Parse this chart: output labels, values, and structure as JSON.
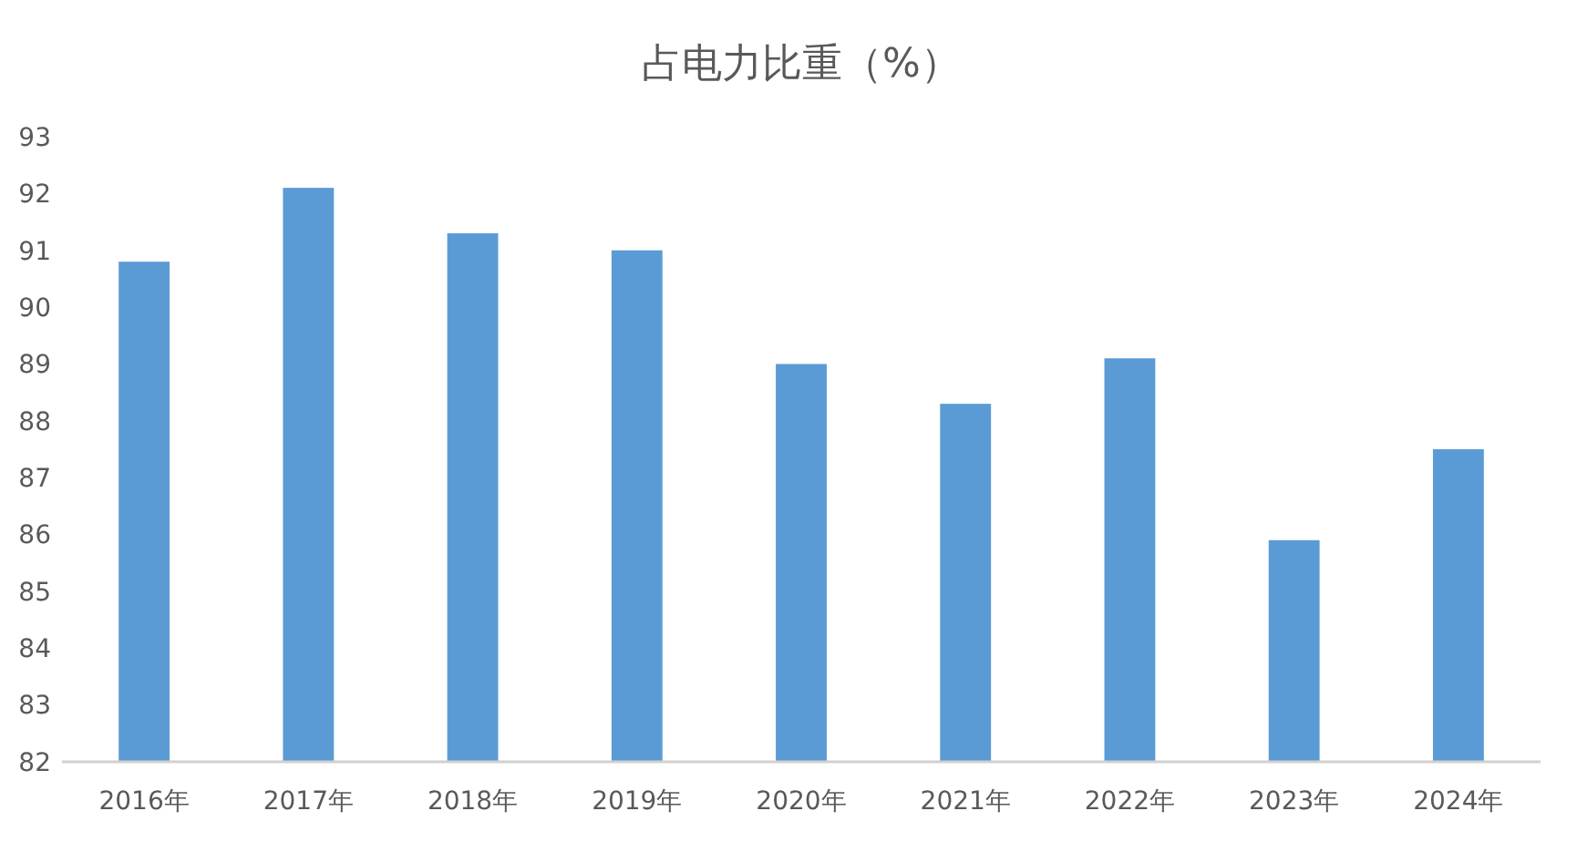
{
  "chart_data": {
    "type": "bar",
    "title": "占电力比重（%）",
    "categories": [
      "2016年",
      "2017年",
      "2018年",
      "2019年",
      "2020年",
      "2021年",
      "2022年",
      "2023年",
      "2024年"
    ],
    "values": [
      90.8,
      92.1,
      91.3,
      91.0,
      89.0,
      88.3,
      89.1,
      85.9,
      87.5
    ],
    "color": "#5b9bd5",
    "ylim": [
      82,
      93
    ],
    "yticks": [
      82,
      83,
      84,
      85,
      86,
      87,
      88,
      89,
      90,
      91,
      92,
      93
    ]
  }
}
